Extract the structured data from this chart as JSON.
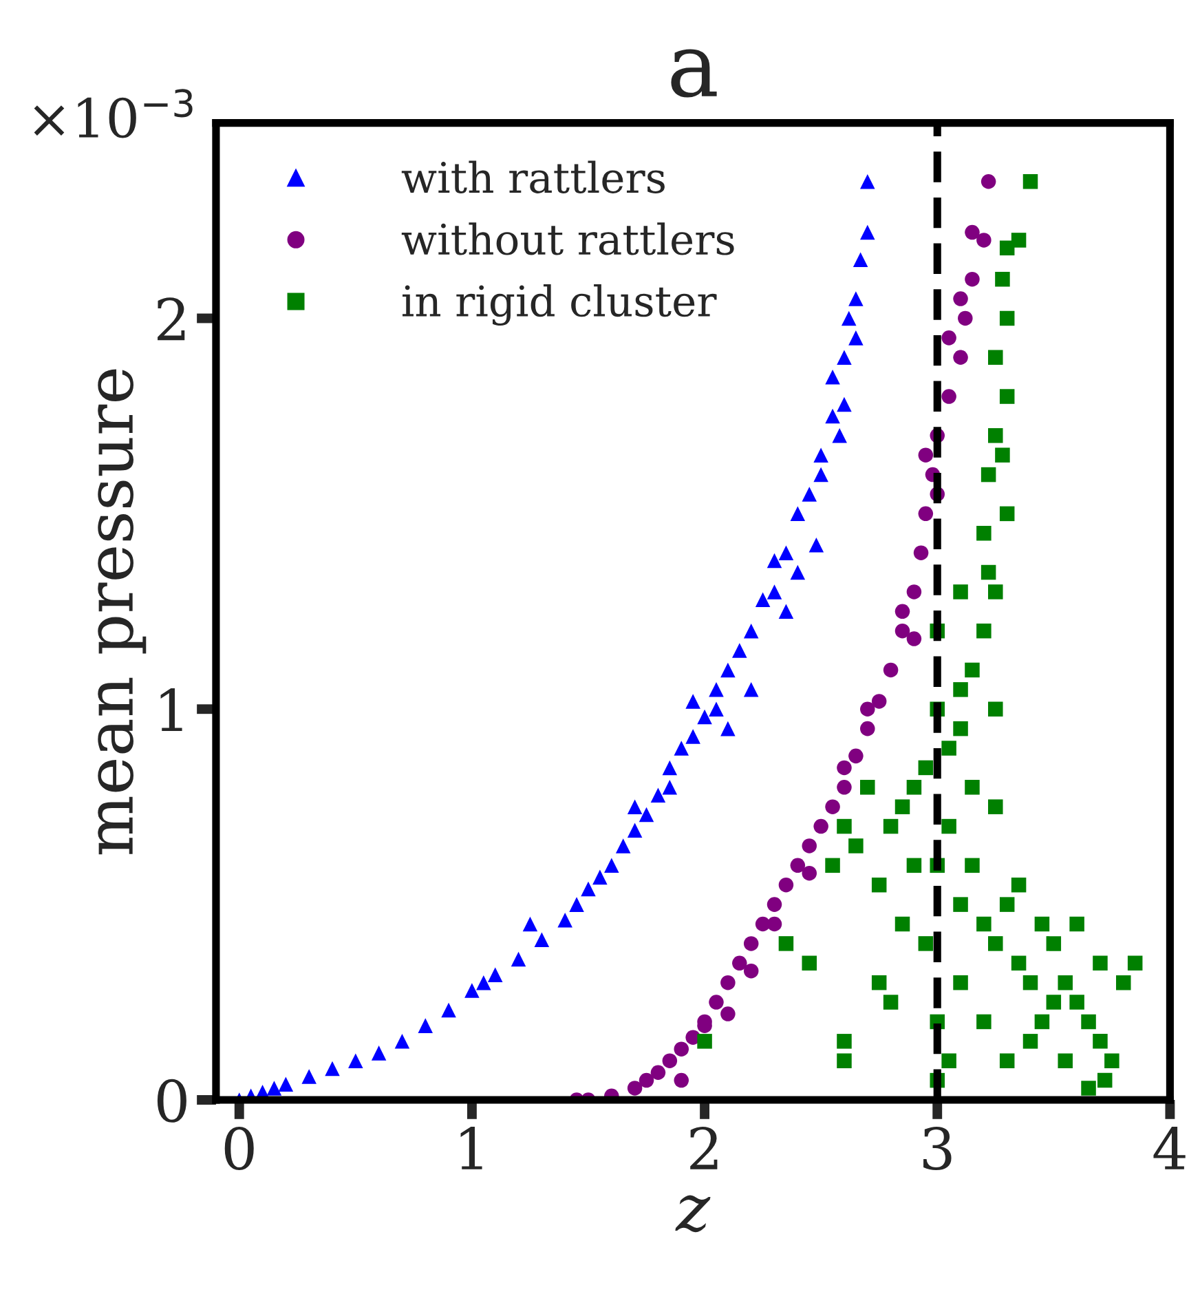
{
  "chart_data": {
    "type": "scatter",
    "title": "a",
    "xlabel": "z",
    "ylabel": "mean pressure",
    "annotations": [
      "×10$^{−3}$"
    ],
    "xlim": [
      -0.1,
      4
    ],
    "xticks": [
      0,
      1,
      2,
      3,
      4
    ],
    "ylim": [
      0,
      2.5
    ],
    "yticks": [
      0,
      1,
      2
    ],
    "grid": false,
    "legend": "top left",
    "ref_lines": [
      {
        "axis": "x",
        "value": 3,
        "color": "#000000",
        "line_style": "dashed"
      }
    ],
    "series": [
      {
        "name": "with rattlers",
        "color": "#0000ff",
        "marker": "triangle",
        "x": [
          0,
          0.05,
          0.1,
          0.15,
          0.2,
          0.3,
          0.4,
          0.5,
          0.6,
          0.7,
          0.8,
          0.9,
          1.0,
          1.05,
          1.1,
          1.2,
          1.3,
          1.4,
          1.45,
          1.5,
          1.55,
          1.6,
          1.65,
          1.7,
          1.75,
          1.8,
          1.85,
          1.9,
          1.95,
          2.0,
          2.05,
          2.1,
          2.15,
          2.2,
          2.25,
          2.3,
          2.35,
          2.4,
          2.45,
          2.5,
          2.55,
          2.6,
          2.62,
          2.65,
          2.67,
          2.7,
          2.7,
          1.25,
          2.3,
          2.1,
          2.2,
          2.48,
          2.55,
          2.6,
          2.65,
          2.05,
          1.85,
          1.95,
          1.7,
          2.4,
          2.35,
          2.5,
          2.58
        ],
        "values": [
          0,
          0.01,
          0.02,
          0.03,
          0.04,
          0.06,
          0.08,
          0.1,
          0.12,
          0.15,
          0.19,
          0.23,
          0.28,
          0.3,
          0.32,
          0.36,
          0.41,
          0.46,
          0.5,
          0.54,
          0.57,
          0.6,
          0.65,
          0.69,
          0.73,
          0.78,
          0.85,
          0.9,
          0.93,
          0.98,
          1.05,
          1.1,
          1.15,
          1.2,
          1.28,
          1.3,
          1.4,
          1.5,
          1.55,
          1.65,
          1.75,
          1.9,
          2.0,
          2.05,
          2.15,
          2.22,
          2.35,
          0.45,
          1.38,
          0.95,
          1.05,
          1.42,
          1.85,
          1.78,
          1.95,
          1.0,
          0.8,
          1.02,
          0.75,
          1.35,
          1.25,
          1.6,
          1.7
        ]
      },
      {
        "name": "without rattlers",
        "color": "#800080",
        "marker": "circle",
        "x": [
          1.45,
          1.5,
          1.6,
          1.7,
          1.75,
          1.8,
          1.85,
          1.9,
          1.95,
          2.0,
          2.05,
          2.1,
          2.15,
          2.2,
          2.25,
          2.3,
          2.35,
          2.4,
          2.45,
          2.5,
          2.55,
          2.6,
          2.65,
          2.7,
          2.75,
          2.8,
          2.85,
          2.9,
          2.93,
          2.95,
          2.98,
          3.0,
          3.05,
          3.1,
          3.12,
          3.15,
          3.2,
          3.22,
          1.9,
          2.0,
          2.1,
          2.2,
          2.3,
          2.45,
          2.6,
          2.7,
          2.85,
          2.9,
          3.0,
          2.95,
          3.1,
          3.05,
          3.15
        ],
        "values": [
          0,
          0,
          0.01,
          0.03,
          0.05,
          0.07,
          0.1,
          0.13,
          0.16,
          0.2,
          0.25,
          0.3,
          0.35,
          0.4,
          0.45,
          0.5,
          0.55,
          0.6,
          0.65,
          0.7,
          0.75,
          0.8,
          0.88,
          0.95,
          1.02,
          1.1,
          1.2,
          1.3,
          1.4,
          1.5,
          1.6,
          1.7,
          1.8,
          1.9,
          2.0,
          2.1,
          2.2,
          2.35,
          0.05,
          0.19,
          0.22,
          0.33,
          0.45,
          0.58,
          0.85,
          1.0,
          1.25,
          1.18,
          1.55,
          1.65,
          2.05,
          1.95,
          2.22
        ]
      },
      {
        "name": "in rigid cluster",
        "color": "#008000",
        "marker": "square",
        "x": [
          3.4,
          3.35,
          3.3,
          3.28,
          3.3,
          3.25,
          3.3,
          3.25,
          3.28,
          3.22,
          3.3,
          3.2,
          3.22,
          3.25,
          3.2,
          3.15,
          3.1,
          3.1,
          3.05,
          3.0,
          2.95,
          2.9,
          2.85,
          2.8,
          2.7,
          2.6,
          2.55,
          2.45,
          2.35,
          2.0,
          2.75,
          2.65,
          2.75,
          2.8,
          2.6,
          2.6,
          3.0,
          3.05,
          3.1,
          3.15,
          3.2,
          3.25,
          3.3,
          3.35,
          3.4,
          3.45,
          3.5,
          3.55,
          3.6,
          3.65,
          3.7,
          3.75,
          3.72,
          3.65,
          3.8,
          3.85,
          3.6,
          3.5,
          3.4,
          3.3,
          3.2,
          3.1,
          2.95,
          2.9,
          3.0,
          3.05,
          3.15,
          3.25,
          3.35,
          2.85,
          3.45,
          3.55,
          3.7,
          3.0,
          3.1,
          3.25,
          3.0
        ],
        "values": [
          2.35,
          2.2,
          2.18,
          2.1,
          2.0,
          1.9,
          1.8,
          1.7,
          1.65,
          1.6,
          1.5,
          1.45,
          1.35,
          1.3,
          1.2,
          1.1,
          1.05,
          0.95,
          0.9,
          1.0,
          0.85,
          0.8,
          0.75,
          0.7,
          0.8,
          0.7,
          0.6,
          0.35,
          0.4,
          0.15,
          0.55,
          0.65,
          0.3,
          0.25,
          0.15,
          0.1,
          0.6,
          0.7,
          0.5,
          0.6,
          0.45,
          0.4,
          0.5,
          0.35,
          0.3,
          0.45,
          0.4,
          0.3,
          0.25,
          0.2,
          0.15,
          0.1,
          0.05,
          0.03,
          0.3,
          0.35,
          0.45,
          0.25,
          0.15,
          0.1,
          0.2,
          0.3,
          0.4,
          0.6,
          0.2,
          0.1,
          0.8,
          0.75,
          0.55,
          0.45,
          0.2,
          0.1,
          0.35,
          1.2,
          1.3,
          1.0,
          0.05
        ]
      }
    ]
  }
}
